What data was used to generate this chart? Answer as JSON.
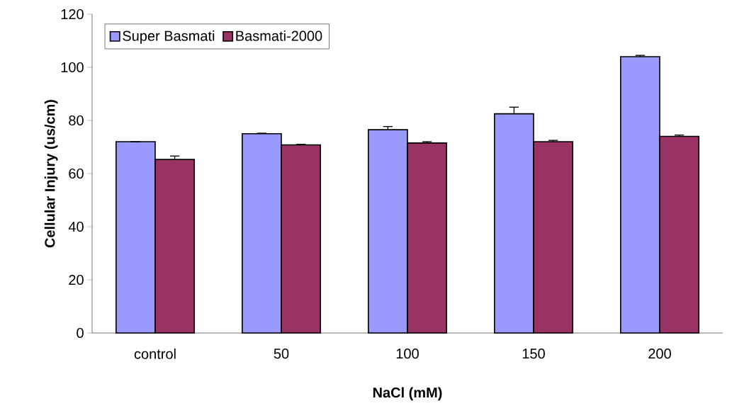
{
  "chart_data": {
    "type": "bar",
    "xlabel": "NaCl (mM)",
    "ylabel": "Cellular Injury (us/cm)",
    "categories": [
      "control",
      "50",
      "100",
      "150",
      "200"
    ],
    "series": [
      {
        "name": "Super Basmati",
        "color": "#9999ff",
        "values": [
          72,
          75,
          76.5,
          82.5,
          104
        ],
        "errors": [
          0,
          0.2,
          1.2,
          2.5,
          0.5
        ]
      },
      {
        "name": "Basmati-2000",
        "color": "#993366",
        "values": [
          65.3,
          70.8,
          71.5,
          72,
          74
        ],
        "errors": [
          1.3,
          0.2,
          0.5,
          0.5,
          0.5
        ]
      }
    ],
    "ylim": [
      0,
      120
    ],
    "yticks": [
      0,
      20,
      40,
      60,
      80,
      100,
      120
    ],
    "grid": false,
    "legend": "top left"
  }
}
